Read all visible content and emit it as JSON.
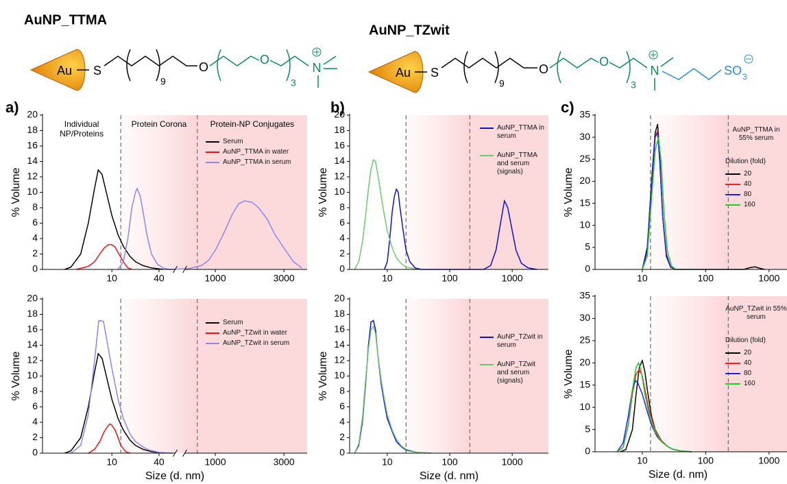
{
  "structures": [
    {
      "title": "AuNP_TTMA",
      "labels": [
        "Au",
        "S",
        "9",
        "O",
        "O",
        "3",
        "N"
      ]
    },
    {
      "title": "AuNP_TZwit",
      "labels": [
        "Au",
        "S",
        "9",
        "O",
        "O",
        "3",
        "N",
        "SO",
        "3"
      ]
    }
  ],
  "chart_data": [
    {
      "type": "line",
      "panel_label": "a)",
      "ylabel": "% Volume",
      "xscale": "log",
      "xlim": [
        1.3,
        4350
      ],
      "xbreak": [
        67,
        600
      ],
      "xticks": [
        10,
        40,
        1000,
        3000
      ],
      "ylim": [
        0,
        20
      ],
      "yticks": [
        0,
        2,
        4,
        6,
        8,
        10,
        12,
        14,
        16,
        18,
        20
      ],
      "vlines": [
        13,
        750
      ],
      "region_labels": [
        "Individual NP/Proteins",
        "Protein Corona",
        "Protein-NP Conjugates"
      ],
      "series": [
        {
          "name": "Serum",
          "color": "#000000",
          "x": [
            2.5,
            3,
            4,
            5,
            6,
            6.7,
            7.5,
            8.5,
            10,
            12,
            14,
            17,
            20,
            25,
            32,
            45
          ],
          "values": [
            0,
            0.3,
            2,
            6,
            10.5,
            12.9,
            12.3,
            10,
            7,
            4.5,
            3,
            1.7,
            1,
            0.5,
            0.2,
            0
          ]
        },
        {
          "name": "AuNP_TTMA in water",
          "color": "#e8141b",
          "x": [
            3.5,
            5,
            6,
            7,
            8,
            9,
            10,
            11,
            12,
            14,
            16,
            18
          ],
          "values": [
            0,
            0.4,
            1,
            2,
            2.8,
            3.2,
            3.2,
            2.9,
            2.2,
            1,
            0.2,
            0
          ]
        },
        {
          "name": "AuNP_TTMA in serum",
          "color": "#8f85e8",
          "x": [
            12,
            14,
            16,
            18,
            20,
            21,
            23,
            25,
            28,
            32,
            38,
            45,
            55,
            650,
            800,
            900,
            1000,
            1100,
            1200,
            1300,
            1450,
            1600,
            1800,
            2000,
            2300,
            2600,
            3000,
            3500,
            4000
          ],
          "values": [
            0,
            1,
            4,
            8,
            10,
            10.5,
            9.5,
            7.5,
            4.5,
            2,
            0.7,
            0.2,
            0,
            0.1,
            0.5,
            1.2,
            2.5,
            4,
            5.5,
            7,
            8.5,
            8.9,
            8.7,
            8,
            6.5,
            4.5,
            2.8,
            1,
            0.2
          ]
        }
      ]
    },
    {
      "type": "line",
      "ylabel": "% Volume",
      "xlabel": "Size (d. nm)",
      "xscale": "log",
      "xlim": [
        1.3,
        4350
      ],
      "xbreak": [
        67,
        600
      ],
      "xticks": [
        10,
        40,
        1000,
        3000
      ],
      "ylim": [
        0,
        20
      ],
      "yticks": [
        0,
        2,
        4,
        6,
        8,
        10,
        12,
        14,
        16,
        18,
        20
      ],
      "vlines": [
        13,
        750
      ],
      "series": [
        {
          "name": "Serum",
          "color": "#000000",
          "x": [
            2.5,
            3,
            4,
            5,
            6,
            6.7,
            7.5,
            8.5,
            10,
            12,
            14,
            17,
            20,
            25,
            32,
            45
          ],
          "values": [
            0,
            0.3,
            2,
            6,
            10.5,
            12.9,
            12.3,
            10,
            7,
            4.5,
            3,
            1.7,
            1,
            0.5,
            0.2,
            0
          ]
        },
        {
          "name": "AuNP_TZwit in water",
          "color": "#e8141b",
          "x": [
            5,
            6,
            7,
            8,
            9,
            9.5,
            10,
            11,
            12,
            13,
            15,
            17
          ],
          "values": [
            0,
            0.5,
            1.5,
            2.8,
            3.6,
            3.8,
            3.6,
            3,
            2,
            1,
            0.2,
            0
          ]
        },
        {
          "name": "AuNP_TZwit in serum",
          "color": "#8f85e8",
          "x": [
            3,
            4,
            5,
            6,
            6.8,
            7.8,
            8.5,
            10,
            12,
            14,
            17,
            20,
            25,
            30,
            40,
            60
          ],
          "values": [
            0,
            1,
            5,
            12,
            17.2,
            17.1,
            15,
            11,
            7,
            4.5,
            2.5,
            1.5,
            0.8,
            0.4,
            0.1,
            0
          ]
        }
      ]
    },
    {
      "type": "line",
      "panel_label": "b)",
      "ylabel": "% Volume",
      "xscale": "log",
      "xlim": [
        2.5,
        3800
      ],
      "xticks": [
        10,
        100,
        1000
      ],
      "ylim": [
        0,
        20
      ],
      "yticks": [
        0,
        2,
        4,
        6,
        8,
        10,
        12,
        14,
        16,
        18,
        20
      ],
      "vlines": [
        20,
        210
      ],
      "series": [
        {
          "name": "AuNP_TTMA in serum",
          "color": "#1010d0",
          "x": [
            9,
            10,
            11,
            12,
            13,
            14,
            15,
            16,
            18,
            20,
            23,
            28,
            35,
            350,
            450,
            550,
            650,
            750,
            850,
            1000,
            1150,
            1400,
            1800,
            2500
          ],
          "values": [
            0,
            1,
            4,
            7.5,
            9.5,
            10.4,
            10,
            8,
            5,
            2.5,
            1,
            0.2,
            0,
            0,
            0.5,
            2.5,
            6,
            8.9,
            8,
            5,
            2.5,
            0.8,
            0.2,
            0
          ]
        },
        {
          "name": "AuNP_TTMA and serum (signals)",
          "color": "#6cc86c",
          "x": [
            3,
            3.5,
            4,
            4.5,
            5,
            5.5,
            6,
            6.5,
            7,
            8,
            9,
            10,
            12,
            14,
            17,
            20,
            30
          ],
          "values": [
            0,
            1,
            3.5,
            7,
            10.5,
            13,
            14.2,
            14,
            12.5,
            9.5,
            7,
            5,
            2.8,
            1.5,
            0.7,
            0.3,
            0
          ]
        }
      ]
    },
    {
      "type": "line",
      "ylabel": "% Volume",
      "xlabel": "Size (d. nm)",
      "xscale": "log",
      "xlim": [
        2.5,
        3800
      ],
      "xticks": [
        10,
        100,
        1000
      ],
      "ylim": [
        0,
        20
      ],
      "yticks": [
        0,
        2,
        4,
        6,
        8,
        10,
        12,
        14,
        16,
        18,
        20
      ],
      "vlines": [
        20,
        210
      ],
      "series": [
        {
          "name": "AuNP_TZwit in serum",
          "color": "#1010d0",
          "x": [
            3,
            3.5,
            4,
            4.5,
            5,
            5.5,
            6,
            6.5,
            7,
            8,
            9,
            10,
            12,
            14,
            17,
            20,
            30,
            50
          ],
          "values": [
            0,
            1,
            4,
            9,
            14,
            17,
            17.2,
            16,
            13,
            9,
            6.5,
            4.5,
            2.8,
            1.5,
            0.8,
            0.4,
            0.1,
            0
          ]
        },
        {
          "name": "AuNP_TZwit and serum (signals)",
          "color": "#6cc86c",
          "x": [
            3,
            3.5,
            4,
            4.5,
            5,
            5.5,
            6,
            6.5,
            7,
            8,
            9,
            10,
            12,
            14,
            17,
            20,
            30,
            50
          ],
          "values": [
            0,
            1.2,
            4.5,
            9.5,
            13.5,
            16,
            16.4,
            15.5,
            13,
            9.5,
            7,
            5,
            3,
            1.8,
            0.9,
            0.5,
            0.1,
            0
          ]
        }
      ]
    },
    {
      "type": "line",
      "panel_label": "c)",
      "ylabel": "% Volume",
      "xscale": "log",
      "xlim": [
        1.8,
        1920
      ],
      "xticks": [
        10,
        100,
        1000
      ],
      "ylim": [
        0,
        35
      ],
      "yticks": [
        0,
        5,
        10,
        15,
        20,
        25,
        30,
        35
      ],
      "vlines": [
        13.5,
        228
      ],
      "annotation": "AuNP_TTMA in 55% serum",
      "legend_title": "Dilution (fold)",
      "series": [
        {
          "name": "20",
          "color": "#000000",
          "x": [
            10,
            12,
            14,
            16,
            17.5,
            19,
            21,
            24,
            28,
            33,
            400,
            500,
            600,
            700,
            850
          ],
          "values": [
            0,
            5,
            20,
            31,
            33,
            25,
            12,
            3,
            0.5,
            0,
            0,
            0.4,
            0.6,
            0.3,
            0
          ]
        },
        {
          "name": "40",
          "color": "#ff1a1a",
          "x": [
            10,
            12,
            14,
            16,
            17.5,
            19,
            21,
            24,
            28,
            33
          ],
          "values": [
            0,
            4,
            19,
            30,
            31.5,
            24,
            12,
            3.5,
            0.6,
            0
          ]
        },
        {
          "name": "80",
          "color": "#2222ee",
          "x": [
            10,
            12,
            14,
            16,
            17.5,
            19,
            21,
            24,
            28,
            33
          ],
          "values": [
            0,
            4.5,
            19,
            30,
            31,
            24,
            12,
            3.5,
            0.5,
            0
          ]
        },
        {
          "name": "160",
          "color": "#22cc22",
          "x": [
            10,
            12,
            14,
            16,
            18,
            20,
            22,
            25,
            29,
            34
          ],
          "values": [
            0,
            3,
            16,
            27,
            30,
            24,
            13,
            4,
            0.8,
            0
          ]
        }
      ]
    },
    {
      "type": "line",
      "ylabel": "% Volume",
      "xlabel": "Size (d. nm)",
      "xscale": "log",
      "xlim": [
        1.8,
        1920
      ],
      "xticks": [
        10,
        100,
        1000
      ],
      "ylim": [
        0,
        35
      ],
      "yticks": [
        0,
        5,
        10,
        15,
        20,
        25,
        30,
        35
      ],
      "vlines": [
        13.5,
        228
      ],
      "annotation": "AuNP_TZwit in 55% serum",
      "legend_title": "Dilution (fold)",
      "series": [
        {
          "name": "20",
          "color": "#000000",
          "x": [
            4.5,
            5.5,
            7,
            8,
            9,
            10,
            11,
            12,
            14,
            16,
            20,
            25,
            30,
            40,
            60
          ],
          "values": [
            0,
            0.5,
            5,
            13,
            19,
            20.5,
            18,
            14,
            8,
            5,
            2.5,
            1.2,
            0.6,
            0.2,
            0
          ]
        },
        {
          "name": "40",
          "color": "#ff1a1a",
          "x": [
            4,
            5,
            6,
            7,
            8,
            9,
            10,
            11,
            13,
            16,
            20,
            25,
            30,
            40,
            60
          ],
          "values": [
            0,
            1,
            6,
            13,
            17.5,
            18.5,
            17,
            14,
            9,
            5,
            2.5,
            1.2,
            0.6,
            0.2,
            0
          ]
        },
        {
          "name": "80",
          "color": "#2222ee",
          "x": [
            4,
            5,
            6,
            7,
            7.8,
            8.5,
            10,
            12,
            14,
            17,
            20,
            25,
            30,
            40,
            60
          ],
          "values": [
            0,
            2,
            8,
            14,
            16,
            15.5,
            13,
            9,
            6,
            3.5,
            2.3,
            1.2,
            0.6,
            0.2,
            0
          ]
        },
        {
          "name": "160",
          "color": "#22cc22",
          "x": [
            4,
            5,
            6,
            7,
            8,
            8.7,
            9.5,
            11,
            13,
            16,
            20,
            25,
            30,
            40,
            60
          ],
          "values": [
            0,
            1,
            6,
            14,
            19,
            20,
            18.5,
            13,
            8,
            4.5,
            2.3,
            1.2,
            0.6,
            0.2,
            0
          ]
        }
      ]
    }
  ]
}
